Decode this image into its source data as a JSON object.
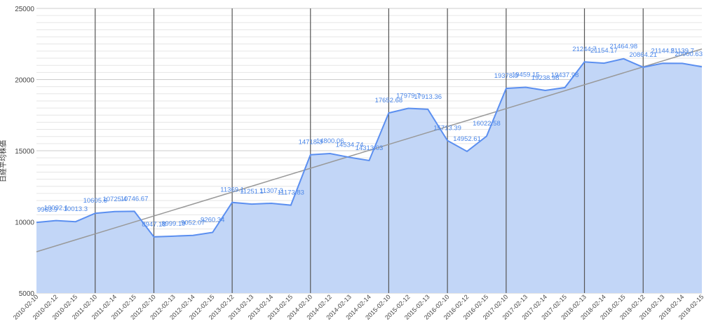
{
  "chart_data": {
    "type": "area",
    "ylabel": "日経平均株価",
    "ylim": [
      5000,
      25000
    ],
    "yticks": [
      5000,
      10000,
      15000,
      20000,
      25000
    ],
    "grid": true,
    "legend": "none",
    "x": [
      "2010-02-10",
      "2010-02-12",
      "2010-02-15",
      "2011-02-10",
      "2011-02-14",
      "2011-02-15",
      "2012-02-10",
      "2012-02-13",
      "2012-02-14",
      "2012-02-15",
      "2013-02-12",
      "2013-02-13",
      "2013-02-14",
      "2013-02-15",
      "2014-02-10",
      "2014-02-12",
      "2014-02-13",
      "2014-02-14",
      "2015-02-10",
      "2015-02-12",
      "2015-02-13",
      "2016-02-10",
      "2016-02-12",
      "2016-02-15",
      "2017-02-10",
      "2017-02-13",
      "2017-02-14",
      "2017-02-15",
      "2018-02-13",
      "2018-02-14",
      "2018-02-15",
      "2019-02-12",
      "2019-02-13",
      "2019-02-14",
      "2019-02-15"
    ],
    "series": [
      {
        "values": [
          9963.9,
          10092.1,
          10013.3,
          10605.6,
          10725.4,
          10746.67,
          8947.18,
          8999.19,
          9052.07,
          9260.34,
          11369.1,
          11251.1,
          11307.3,
          11173.83,
          14718.3,
          14800.06,
          14534.74,
          14313.03,
          17652.68,
          17979.7,
          17913.36,
          15713.39,
          14952.61,
          16022.58,
          19378.9,
          19459.15,
          19238.98,
          19437.98,
          21244.7,
          21154.17,
          21464.98,
          20864.21,
          21144.5,
          21139.7,
          20900.63
        ],
        "labels": [
          "9963.9",
          "10092.1",
          "10013.3",
          "10605.6",
          "10725.4",
          "10746.67",
          "8947.18",
          "8999.19",
          "9052.07",
          "9260.34",
          "11369.1",
          "11251.1",
          "11307.3",
          "11173.83",
          "14718.3",
          "14800.06",
          "14534.74",
          "14313.03",
          "17652.68",
          "17979.7",
          "17913.36",
          "15713.39",
          "14952.61",
          "16022.58",
          "19378.9",
          "19459.15",
          "19238.98",
          "19437.98",
          "21244.7",
          "21154.17",
          "21464.98",
          "20864.21",
          "21144.5",
          "21139.7",
          "20900.63"
        ]
      }
    ],
    "trendline": {
      "start": 7900,
      "end": 22150
    },
    "vertical_markers_at": [
      "2011-02-10",
      "2012-02-10",
      "2013-02-12",
      "2014-02-10",
      "2015-02-10",
      "2016-02-10",
      "2017-02-10",
      "2018-02-13",
      "2019-02-12"
    ],
    "colors": {
      "area": "#c2d6f7",
      "line": "#5b8ff0",
      "label": "#4a86e8",
      "trend": "#999999"
    }
  }
}
